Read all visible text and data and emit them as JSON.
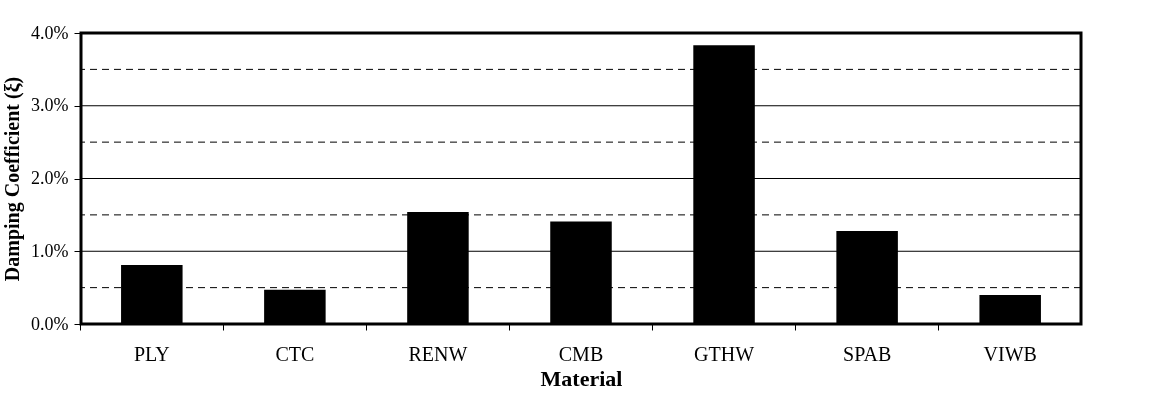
{
  "chart_data": {
    "type": "bar",
    "xlabel": "Material",
    "ylabel": "Damping Coefficient (ξ)",
    "categories": [
      "PLY",
      "CTC",
      "RENW",
      "CMB",
      "GTHW",
      "SPAB",
      "VIWB"
    ],
    "values": [
      0.81,
      0.47,
      1.54,
      1.41,
      3.83,
      1.28,
      0.4
    ],
    "color": "#000000",
    "ylim": [
      0,
      4
    ],
    "yticks": [
      {
        "value": 0,
        "label": "0.0%"
      },
      {
        "value": 0.5,
        "label": null
      },
      {
        "value": 1,
        "label": "1.0%"
      },
      {
        "value": 1.5,
        "label": null
      },
      {
        "value": 2,
        "label": "2.0%"
      },
      {
        "value": 2.5,
        "label": null
      },
      {
        "value": 3,
        "label": "3.0%"
      },
      {
        "value": 3.5,
        "label": null
      },
      {
        "value": 4,
        "label": "4.0%"
      }
    ],
    "grid": "y"
  }
}
